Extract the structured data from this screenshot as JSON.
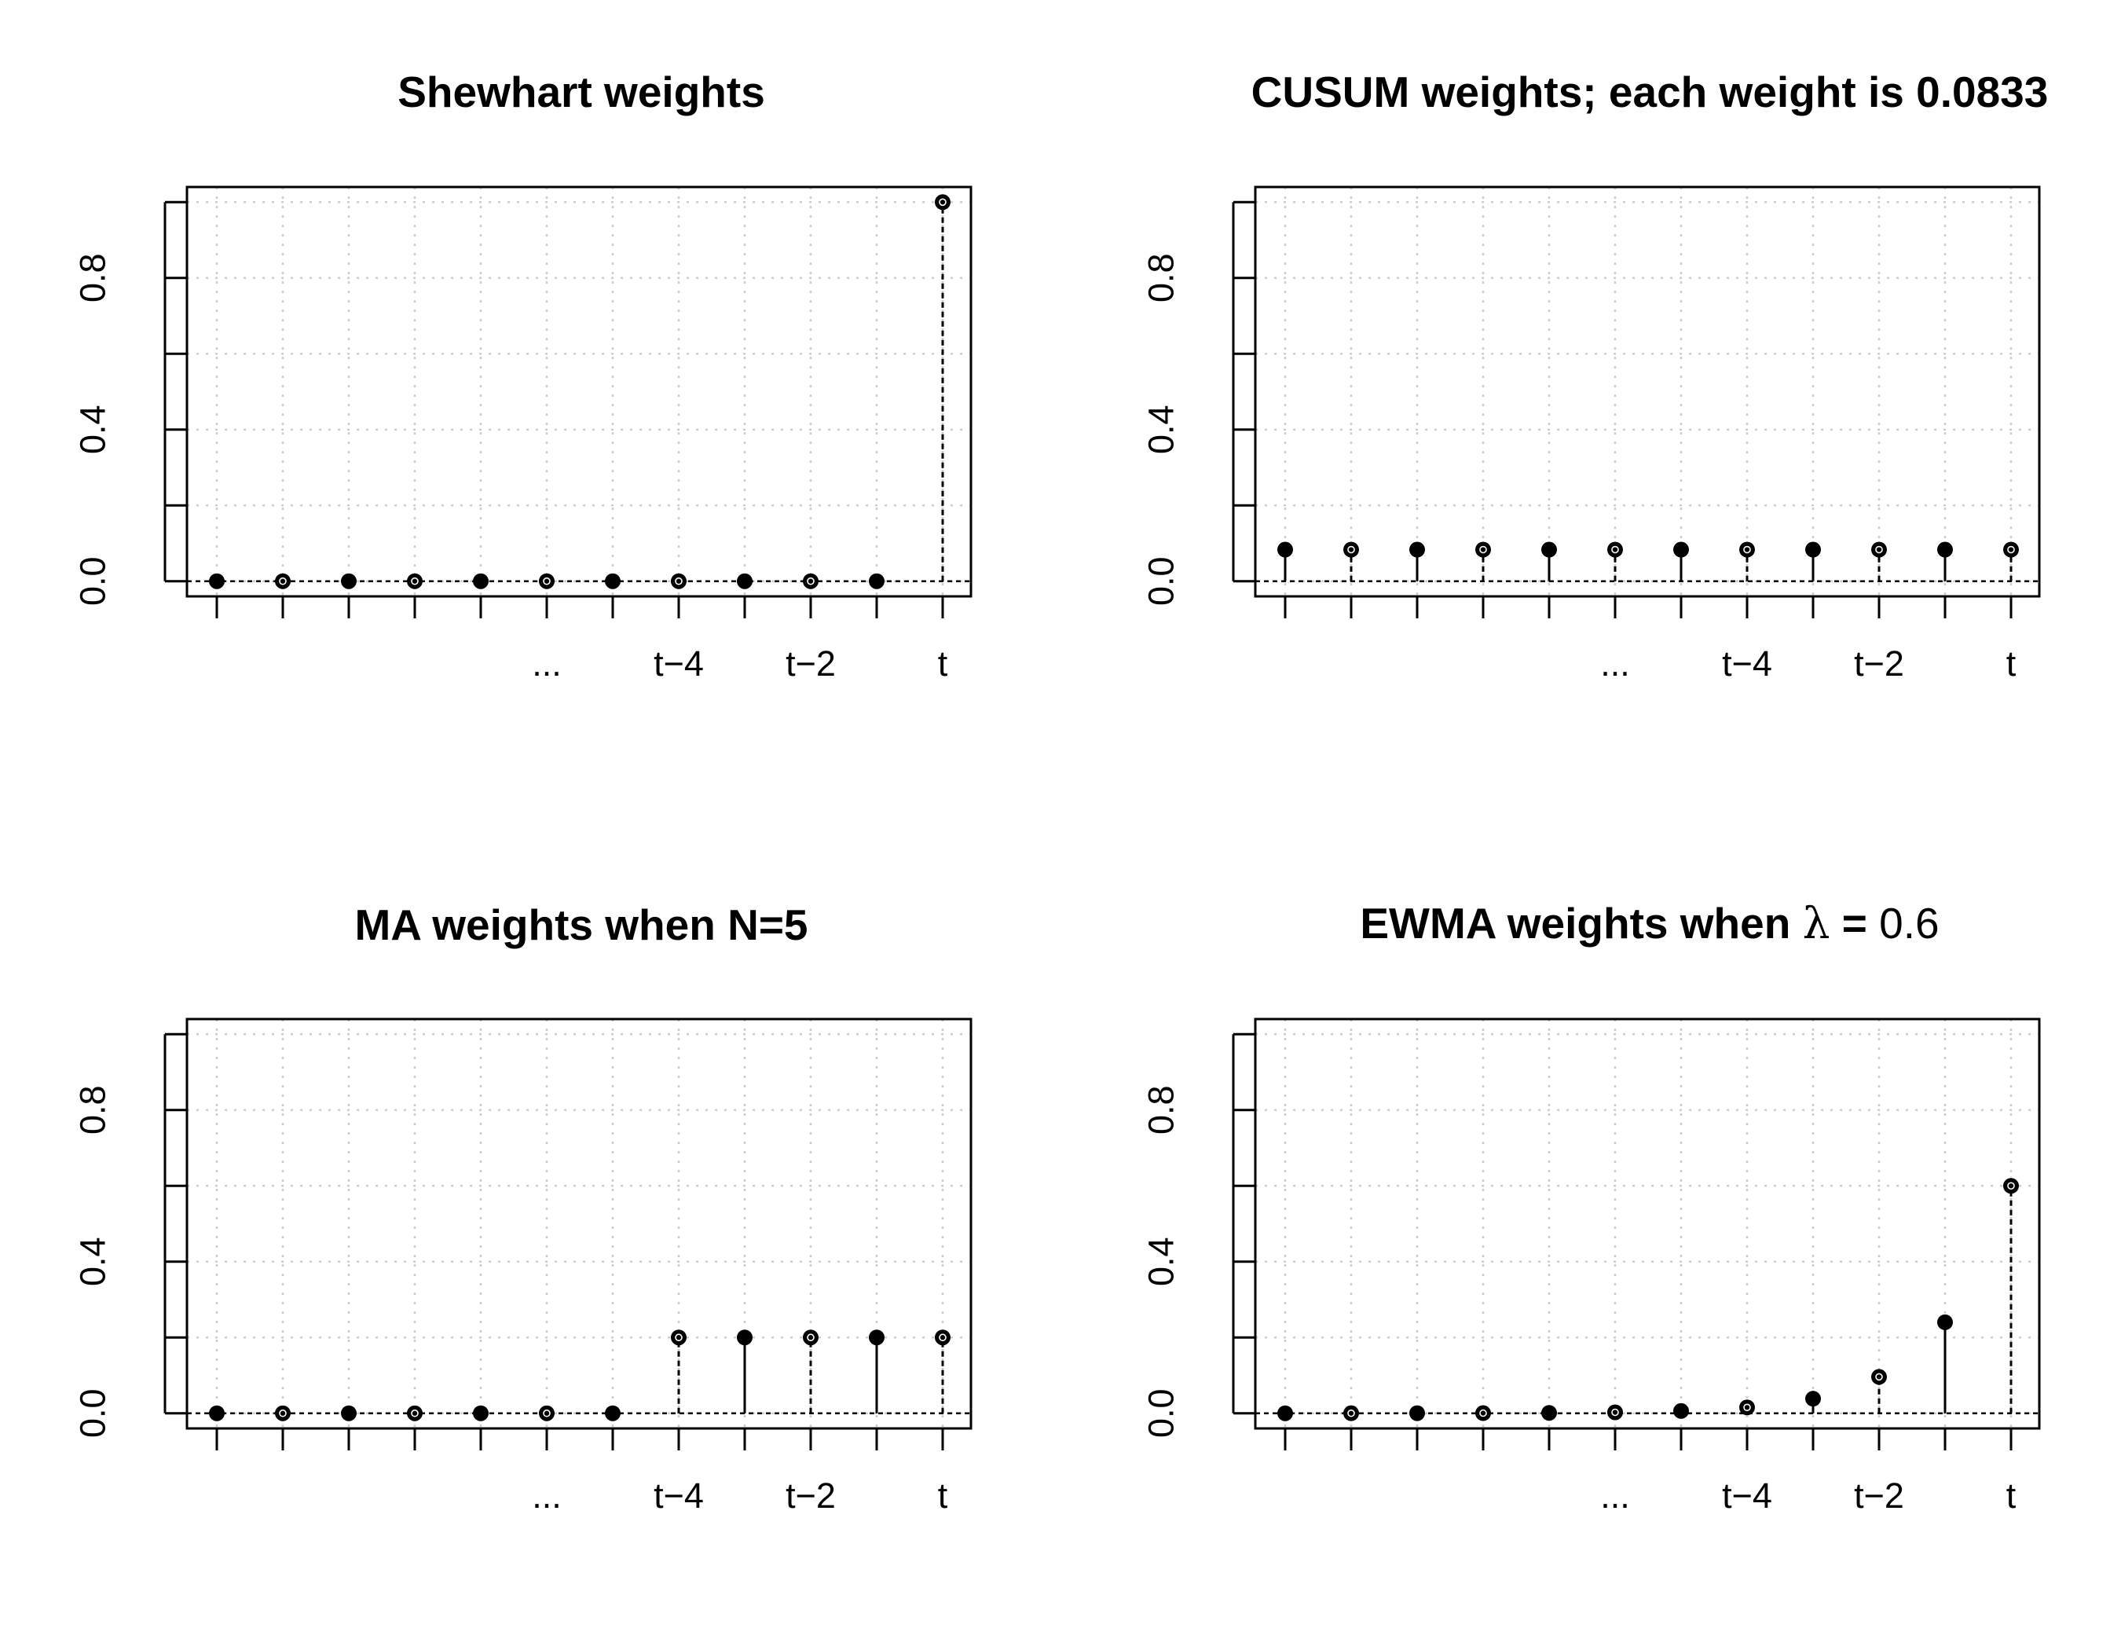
{
  "chart_data": [
    {
      "type": "stem",
      "title": "Shewhart weights",
      "x": [
        1,
        2,
        3,
        4,
        5,
        6,
        7,
        8,
        9,
        10,
        11,
        12
      ],
      "values": [
        0,
        0,
        0,
        0,
        0,
        0,
        0,
        0,
        0,
        0,
        0,
        1
      ],
      "xtick_labels": [
        "",
        "",
        "",
        "",
        "",
        "...",
        "",
        "t−4",
        "",
        "t−2",
        "",
        "t"
      ],
      "yticks": [
        0.0,
        0.2,
        0.4,
        0.6,
        0.8,
        1.0
      ],
      "ytick_labels": [
        "0.0",
        "",
        "0.4",
        "",
        "0.8",
        ""
      ],
      "ylim": [
        -0.04,
        1.04
      ],
      "grid": true
    },
    {
      "type": "stem",
      "title": "CUSUM weights; each weight is 0.0833",
      "x": [
        1,
        2,
        3,
        4,
        5,
        6,
        7,
        8,
        9,
        10,
        11,
        12
      ],
      "values": [
        0.0833,
        0.0833,
        0.0833,
        0.0833,
        0.0833,
        0.0833,
        0.0833,
        0.0833,
        0.0833,
        0.0833,
        0.0833,
        0.0833
      ],
      "xtick_labels": [
        "",
        "",
        "",
        "",
        "",
        "...",
        "",
        "t−4",
        "",
        "t−2",
        "",
        "t"
      ],
      "yticks": [
        0.0,
        0.2,
        0.4,
        0.6,
        0.8,
        1.0
      ],
      "ytick_labels": [
        "0.0",
        "",
        "0.4",
        "",
        "0.8",
        ""
      ],
      "ylim": [
        -0.04,
        1.04
      ],
      "grid": true
    },
    {
      "type": "stem",
      "title": "MA weights when N=5",
      "x": [
        1,
        2,
        3,
        4,
        5,
        6,
        7,
        8,
        9,
        10,
        11,
        12
      ],
      "values": [
        0,
        0,
        0,
        0,
        0,
        0,
        0,
        0.2,
        0.2,
        0.2,
        0.2,
        0.2
      ],
      "xtick_labels": [
        "",
        "",
        "",
        "",
        "",
        "...",
        "",
        "t−4",
        "",
        "t−2",
        "",
        "t"
      ],
      "yticks": [
        0.0,
        0.2,
        0.4,
        0.6,
        0.8,
        1.0
      ],
      "ytick_labels": [
        "0.0",
        "",
        "0.4",
        "",
        "0.8",
        ""
      ],
      "ylim": [
        -0.04,
        1.04
      ],
      "grid": true
    },
    {
      "type": "stem",
      "title_prefix": "EWMA weights when ",
      "title_symbol": "λ",
      "title_eq": " = ",
      "title_value": "0.6",
      "x": [
        1,
        2,
        3,
        4,
        5,
        6,
        7,
        8,
        9,
        10,
        11,
        12
      ],
      "values": [
        0.0,
        0.0001,
        0.0002,
        0.0004,
        0.001,
        0.0025,
        0.0061,
        0.0154,
        0.0384,
        0.096,
        0.24,
        0.6
      ],
      "xtick_labels": [
        "",
        "",
        "",
        "",
        "",
        "...",
        "",
        "t−4",
        "",
        "t−2",
        "",
        "t"
      ],
      "yticks": [
        0.0,
        0.2,
        0.4,
        0.6,
        0.8,
        1.0
      ],
      "ytick_labels": [
        "0.0",
        "",
        "0.4",
        "",
        "0.8",
        ""
      ],
      "ylim": [
        -0.04,
        1.04
      ],
      "grid": true
    }
  ]
}
